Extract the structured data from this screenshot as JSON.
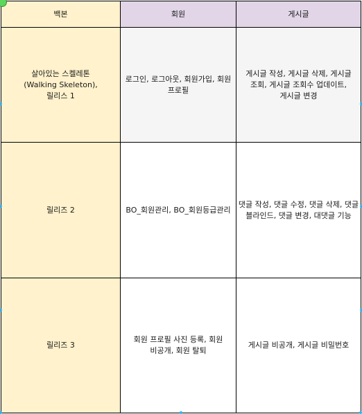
{
  "table": {
    "headers": [
      "백본",
      "회원",
      "게시글"
    ],
    "rows": [
      {
        "backbone": "살아있는 스켈레톤\n(Walking Skeleton),\n릴리스 1",
        "member": "로그인, 로그아웃, 회원가입, 회원 프로필",
        "post": "게시글 작성, 게시글 삭제, 게시글 조회, 게시글 조회수 업데이트, 게시글 변경"
      },
      {
        "backbone": "릴리즈 2",
        "member": "BO_회원관리, BO_회원등급관리",
        "post": "댓글 작성, 댓글 수정, 댓글 삭제, 댓글 블라인드, 댓글 변경, 대댓글 기능"
      },
      {
        "backbone": "릴리즈 3",
        "member": "회원 프로필 사진 등록, 회원 비공개, 회원 탈퇴",
        "post": "게시글 비공개, 게시글 비밀번호"
      }
    ]
  },
  "colors": {
    "backbone_fill": "#fff2cc",
    "header_fill": "#e1d5e7",
    "release1_fill": "#f5f5f5",
    "border": "#000000",
    "selection_handle": "#29b6f2"
  }
}
